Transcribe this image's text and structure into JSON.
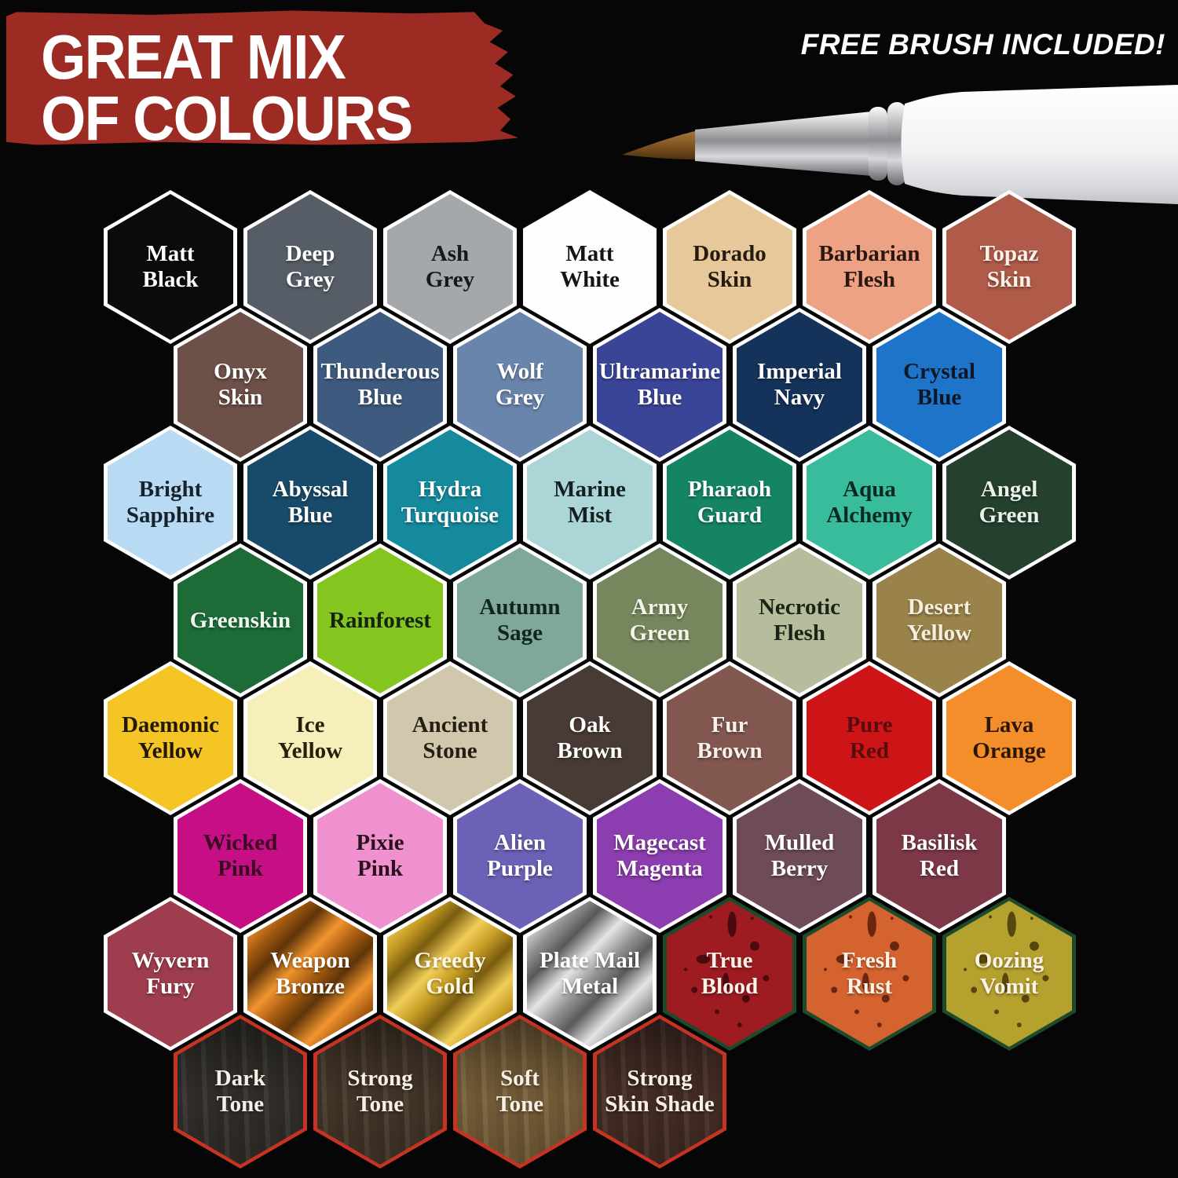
{
  "header": {
    "title_lines": [
      "GREAT MIX",
      "OF COLOURS"
    ],
    "banner_color": "#9c2b23",
    "free_brush_label": "FREE BRUSH INCLUDED!"
  },
  "palette": {
    "rows": [
      {
        "items": [
          {
            "lines": [
              "Matt",
              "Black"
            ],
            "fill": "#0b0b0d",
            "text": "#ffffff",
            "border": "#ffffff",
            "style": "flat"
          },
          {
            "lines": [
              "Deep",
              "Grey"
            ],
            "fill": "#575d67",
            "text": "#ffffff",
            "border": "#ffffff",
            "style": "flat"
          },
          {
            "lines": [
              "Ash",
              "Grey"
            ],
            "fill": "#a4a8ab",
            "text": "#16181a",
            "border": "#ffffff",
            "style": "flat"
          },
          {
            "lines": [
              "Matt",
              "White"
            ],
            "fill": "#fdfdfd",
            "text": "#141414",
            "border": "#ffffff",
            "style": "flat"
          },
          {
            "lines": [
              "Dorado",
              "Skin"
            ],
            "fill": "#e6c89b",
            "text": "#241a0e",
            "border": "#ffffff",
            "style": "flat"
          },
          {
            "lines": [
              "Barbarian",
              "Flesh"
            ],
            "fill": "#eda284",
            "text": "#2a1710",
            "border": "#ffffff",
            "style": "flat"
          },
          {
            "lines": [
              "Topaz",
              "Skin"
            ],
            "fill": "#b05a49",
            "text": "#fbf3e9",
            "border": "#ffffff",
            "style": "flat"
          }
        ]
      },
      {
        "items": [
          {
            "lines": [
              "Onyx",
              "Skin"
            ],
            "fill": "#6d5047",
            "text": "#ffffff",
            "border": "#ffffff",
            "style": "flat"
          },
          {
            "lines": [
              "Thunderous",
              "Blue"
            ],
            "fill": "#3e5a7f",
            "text": "#ffffff",
            "border": "#ffffff",
            "style": "flat"
          },
          {
            "lines": [
              "Wolf",
              "Grey"
            ],
            "fill": "#6a85ac",
            "text": "#ffffff",
            "border": "#ffffff",
            "style": "flat"
          },
          {
            "lines": [
              "Ultramarine",
              "Blue"
            ],
            "fill": "#3a4598",
            "text": "#ffffff",
            "border": "#ffffff",
            "style": "flat"
          },
          {
            "lines": [
              "Imperial",
              "Navy"
            ],
            "fill": "#14325a",
            "text": "#ffffff",
            "border": "#ffffff",
            "style": "flat"
          },
          {
            "lines": [
              "Crystal",
              "Blue"
            ],
            "fill": "#1d74c9",
            "text": "#0c1826",
            "border": "#ffffff",
            "style": "flat"
          }
        ]
      },
      {
        "items": [
          {
            "lines": [
              "Bright",
              "Sapphire"
            ],
            "fill": "#b9daf3",
            "text": "#16222e",
            "border": "#ffffff",
            "style": "flat"
          },
          {
            "lines": [
              "Abyssal",
              "Blue"
            ],
            "fill": "#184a69",
            "text": "#ffffff",
            "border": "#ffffff",
            "style": "flat"
          },
          {
            "lines": [
              "Hydra",
              "Turquoise"
            ],
            "fill": "#158a9d",
            "text": "#ffffff",
            "border": "#ffffff",
            "style": "flat"
          },
          {
            "lines": [
              "Marine",
              "Mist"
            ],
            "fill": "#abd5d6",
            "text": "#14201f",
            "border": "#ffffff",
            "style": "flat"
          },
          {
            "lines": [
              "Pharaoh",
              "Guard"
            ],
            "fill": "#158464",
            "text": "#ffffff",
            "border": "#ffffff",
            "style": "flat"
          },
          {
            "lines": [
              "Aqua",
              "Alchemy"
            ],
            "fill": "#38bc9c",
            "text": "#072920",
            "border": "#ffffff",
            "style": "flat"
          },
          {
            "lines": [
              "Angel",
              "Green"
            ],
            "fill": "#25402f",
            "text": "#eaf2ea",
            "border": "#ffffff",
            "style": "flat"
          }
        ]
      },
      {
        "items": [
          {
            "lines": [
              "Greenskin"
            ],
            "fill": "#1d6c38",
            "text": "#eef5ec",
            "border": "#ffffff",
            "style": "flat"
          },
          {
            "lines": [
              "Rainforest"
            ],
            "fill": "#84c51f",
            "text": "#15230b",
            "border": "#ffffff",
            "style": "flat"
          },
          {
            "lines": [
              "Autumn",
              "Sage"
            ],
            "fill": "#7fa899",
            "text": "#122420",
            "border": "#ffffff",
            "style": "flat"
          },
          {
            "lines": [
              "Army",
              "Green"
            ],
            "fill": "#76875e",
            "text": "#f1f4e6",
            "border": "#ffffff",
            "style": "flat"
          },
          {
            "lines": [
              "Necrotic",
              "Flesh"
            ],
            "fill": "#b5bd9d",
            "text": "#1c2214",
            "border": "#ffffff",
            "style": "flat"
          },
          {
            "lines": [
              "Desert",
              "Yellow"
            ],
            "fill": "#9a834b",
            "text": "#f4eeda",
            "border": "#ffffff",
            "style": "flat"
          }
        ]
      },
      {
        "items": [
          {
            "lines": [
              "Daemonic",
              "Yellow"
            ],
            "fill": "#f5c526",
            "text": "#231705",
            "border": "#ffffff",
            "style": "flat"
          },
          {
            "lines": [
              "Ice",
              "Yellow"
            ],
            "fill": "#f6efba",
            "text": "#26200b",
            "border": "#ffffff",
            "style": "flat"
          },
          {
            "lines": [
              "Ancient",
              "Stone"
            ],
            "fill": "#d1c7ac",
            "text": "#241f12",
            "border": "#ffffff",
            "style": "flat"
          },
          {
            "lines": [
              "Oak",
              "Brown"
            ],
            "fill": "#483a34",
            "text": "#ffffff",
            "border": "#ffffff",
            "style": "flat"
          },
          {
            "lines": [
              "Fur",
              "Brown"
            ],
            "fill": "#815750",
            "text": "#f9f1ea",
            "border": "#ffffff",
            "style": "flat"
          },
          {
            "lines": [
              "Pure",
              "Red"
            ],
            "fill": "#cd1517",
            "text": "#570d0d",
            "border": "#ffffff",
            "style": "flat"
          },
          {
            "lines": [
              "Lava",
              "Orange"
            ],
            "fill": "#f38e2a",
            "text": "#2c1605",
            "border": "#ffffff",
            "style": "flat"
          }
        ]
      },
      {
        "items": [
          {
            "lines": [
              "Wicked",
              "Pink"
            ],
            "fill": "#c60e85",
            "text": "#3a0a24",
            "border": "#ffffff",
            "style": "flat"
          },
          {
            "lines": [
              "Pixie",
              "Pink"
            ],
            "fill": "#ee91ce",
            "text": "#2c1020",
            "border": "#ffffff",
            "style": "flat"
          },
          {
            "lines": [
              "Alien",
              "Purple"
            ],
            "fill": "#6b61b6",
            "text": "#ffffff",
            "border": "#ffffff",
            "style": "flat"
          },
          {
            "lines": [
              "Magecast",
              "Magenta"
            ],
            "fill": "#8c3daf",
            "text": "#ffffff",
            "border": "#ffffff",
            "style": "flat"
          },
          {
            "lines": [
              "Mulled",
              "Berry"
            ],
            "fill": "#6e4b58",
            "text": "#ffffff",
            "border": "#ffffff",
            "style": "flat"
          },
          {
            "lines": [
              "Basilisk",
              "Red"
            ],
            "fill": "#7d3848",
            "text": "#ffffff",
            "border": "#ffffff",
            "style": "flat"
          }
        ]
      },
      {
        "items": [
          {
            "lines": [
              "Wyvern",
              "Fury"
            ],
            "fill": "#9d3d4d",
            "text": "#ffffff",
            "border": "#ffffff",
            "style": "flat"
          },
          {
            "lines": [
              "Weapon",
              "Bronze"
            ],
            "metal": [
              "#5f3408",
              "#a85c10",
              "#f0942e"
            ],
            "text": "#ffffff",
            "border": "#ffffff",
            "style": "metal"
          },
          {
            "lines": [
              "Greedy",
              "Gold"
            ],
            "metal": [
              "#7a5c10",
              "#c49a22",
              "#f0ce58"
            ],
            "text": "#fdf8e4",
            "border": "#ffffff",
            "style": "metal"
          },
          {
            "lines": [
              "Plate Mail",
              "Metal"
            ],
            "metal": [
              "#59595b",
              "#969698",
              "#e4e4e6"
            ],
            "text": "#ffffff",
            "border": "#ffffff",
            "style": "metal"
          },
          {
            "lines": [
              "True",
              "Blood"
            ],
            "fill": "#9e1b22",
            "spot": "#4a0a0e",
            "text": "#fdf2e8",
            "border": "#1d4a2b",
            "style": "splatter"
          },
          {
            "lines": [
              "Fresh",
              "Rust"
            ],
            "fill": "#d4632f",
            "spot": "#6b2610",
            "text": "#fdf2e8",
            "border": "#1d4a2b",
            "style": "splatter"
          },
          {
            "lines": [
              "Oozing",
              "Vomit"
            ],
            "fill": "#b5a12e",
            "spot": "#57470e",
            "text": "#fdf2e8",
            "border": "#1d4a2b",
            "style": "splatter"
          }
        ]
      },
      {
        "items": [
          {
            "lines": [
              "Dark",
              "Tone"
            ],
            "fill": "#33302c",
            "text": "#f7efe4",
            "border": "#c63322",
            "style": "wash"
          },
          {
            "lines": [
              "Strong",
              "Tone"
            ],
            "fill": "#46382a",
            "text": "#f7efe4",
            "border": "#c63322",
            "style": "wash"
          },
          {
            "lines": [
              "Soft",
              "Tone"
            ],
            "fill": "#7a613b",
            "text": "#f7efe4",
            "border": "#c63322",
            "style": "wash"
          },
          {
            "lines": [
              "Strong",
              "Skin Shade"
            ],
            "fill": "#472e27",
            "text": "#f7efe4",
            "border": "#c63322",
            "style": "wash"
          }
        ]
      }
    ]
  }
}
